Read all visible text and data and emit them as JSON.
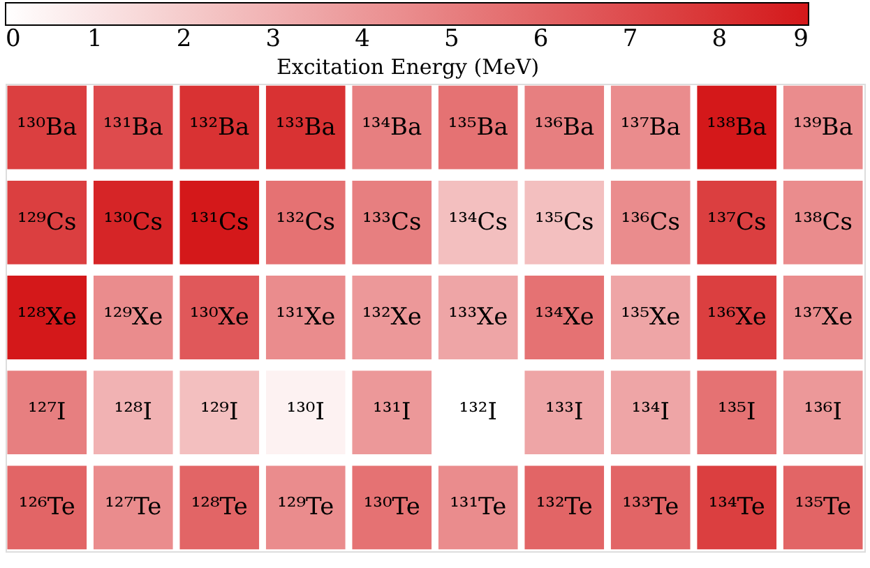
{
  "chart_data": {
    "type": "heatmap",
    "clabel": "Excitation Energy (MeV)",
    "categories": [
      null,
      null,
      null,
      null,
      null,
      null,
      null,
      null,
      null,
      null
    ],
    "y_categories": [
      null,
      null,
      null,
      null,
      null
    ],
    "cells": [
      [
        7.5,
        7,
        8,
        8,
        5,
        5.5,
        5,
        4.5,
        9,
        4.5
      ],
      [
        7.5,
        8.5,
        9,
        5.5,
        5,
        2.5,
        2.5,
        4.5,
        7.5,
        4.5
      ],
      [
        9,
        4.5,
        6.5,
        4.5,
        4,
        3.5,
        5.5,
        3.5,
        7.5,
        4.5
      ],
      [
        5,
        3,
        2.5,
        0.5,
        4,
        0,
        3.5,
        3.5,
        5.5,
        4
      ],
      [
        6,
        4.5,
        6,
        4.5,
        5.5,
        4.5,
        6,
        6,
        7.5,
        6
      ]
    ],
    "cell_labels": [
      [
        "¹³⁰Ba",
        "¹³¹Ba",
        "¹³²Ba",
        "¹³³Ba",
        "¹³⁴Ba",
        "¹³⁵Ba",
        "¹³⁶Ba",
        "¹³⁷Ba",
        "¹³⁸Ba",
        "¹³⁹Ba"
      ],
      [
        "¹²⁹Cs",
        "¹³⁰Cs",
        "¹³¹Cs",
        "¹³²Cs",
        "¹³³Cs",
        "¹³⁴Cs",
        "¹³⁵Cs",
        "¹³⁶Cs",
        "¹³⁷Cs",
        "¹³⁸Cs"
      ],
      [
        "¹²⁸Xe",
        "¹²⁹Xe",
        "¹³⁰Xe",
        "¹³¹Xe",
        "¹³²Xe",
        "¹³³Xe",
        "¹³⁴Xe",
        "¹³⁵Xe",
        "¹³⁶Xe",
        "¹³⁷Xe"
      ],
      [
        "¹²⁷I",
        "¹²⁸I",
        "¹²⁹I",
        "¹³⁰I",
        "¹³¹I",
        "¹³²I",
        "¹³³I",
        "¹³⁴I",
        "¹³⁵I",
        "¹³⁶I"
      ],
      [
        "¹²⁶Te",
        "¹²⁷Te",
        "¹²⁸Te",
        "¹²⁹Te",
        "¹³⁰Te",
        "¹³¹Te",
        "¹³²Te",
        "¹³³Te",
        "¹³⁴Te",
        "¹³⁵Te"
      ]
    ],
    "clim": [
      0,
      9
    ],
    "cticks": [
      0,
      1,
      2,
      3,
      4,
      5,
      6,
      7,
      8,
      9
    ],
    "colors": [
      "#ffffff",
      "#d4181a"
    ]
  }
}
